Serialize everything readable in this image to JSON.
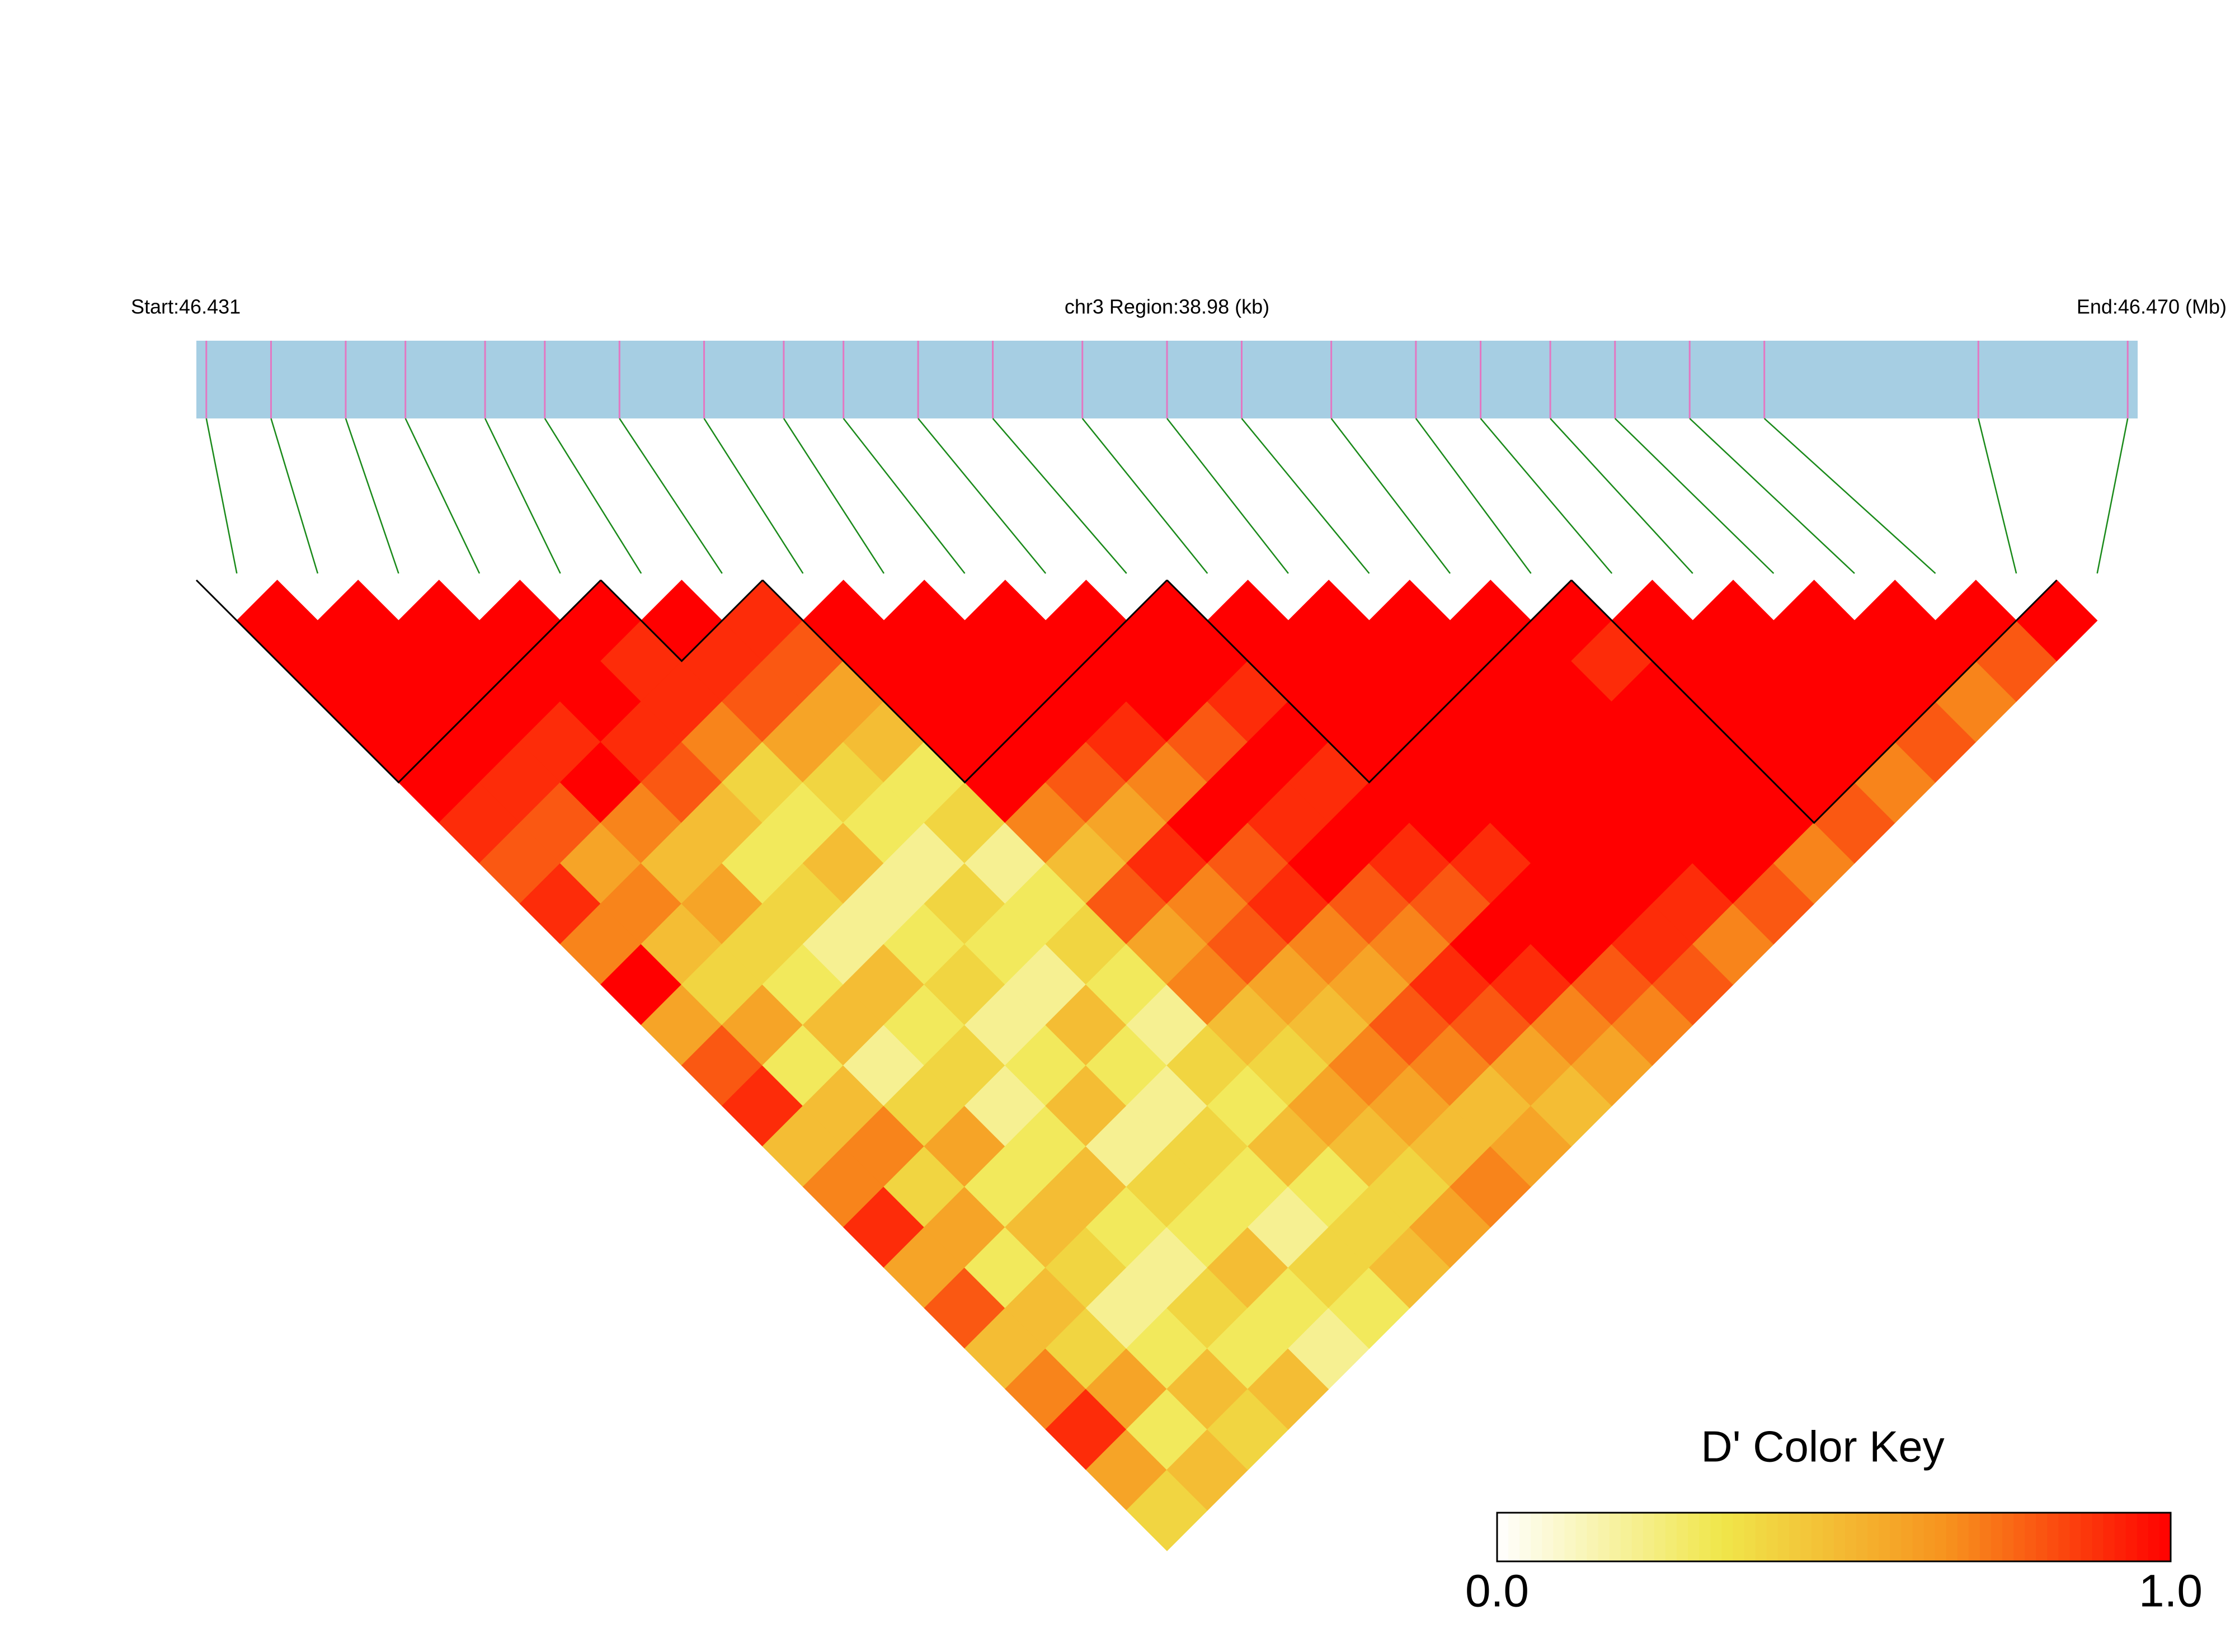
{
  "chart_data": {
    "type": "ld-heatmap",
    "start_label": "Start:46.431",
    "region_label": "chr3 Region:38.98 (kb)",
    "end_label": "End:46.470 (Mb)",
    "xlim": [
      46.431,
      46.47
    ],
    "positions": [
      46.4312,
      46.4325,
      46.434,
      46.4352,
      46.4368,
      46.438,
      46.4395,
      46.4412,
      46.4428,
      46.444,
      46.4455,
      46.447,
      46.4488,
      46.4505,
      46.452,
      46.4538,
      46.4555,
      46.4568,
      46.4582,
      46.4595,
      46.461,
      46.4625,
      46.4668,
      46.4698
    ],
    "ld": [
      [
        1,
        1,
        1,
        1,
        1,
        0.9,
        0.8,
        0.9,
        0.7,
        1,
        0.6,
        0.8,
        0.9,
        0.5,
        0.7,
        0.9,
        0.6,
        0.8,
        0.5,
        0.7,
        0.9,
        0.6,
        0.4
      ],
      [
        1,
        1,
        1,
        1,
        0.9,
        0.8,
        0.6,
        0.7,
        0.5,
        0.4,
        0.6,
        0.3,
        0.5,
        0.7,
        0.4,
        0.6,
        0.3,
        0.5,
        0.4,
        0.6,
        0.3,
        0.5
      ],
      [
        1,
        1,
        1,
        0.9,
        1,
        0.7,
        0.5,
        0.6,
        0.4,
        0.3,
        0.5,
        0.2,
        0.4,
        0.6,
        0.3,
        0.5,
        0.4,
        0.2,
        0.3,
        0.5,
        0.4
      ],
      [
        1,
        1,
        1,
        0.9,
        0.8,
        0.5,
        0.3,
        0.4,
        0.2,
        0.5,
        0.3,
        0.4,
        0.2,
        0.3,
        0.5,
        0.3,
        0.2,
        0.4,
        0.3,
        0.5
      ],
      [
        1,
        0.9,
        0.9,
        0.7,
        0.4,
        0.3,
        0.5,
        0.2,
        0.3,
        0.4,
        0.2,
        0.3,
        0.5,
        0.2,
        0.4,
        0.3,
        0.5,
        0.3,
        0.2
      ],
      [
        1,
        0.9,
        0.8,
        0.6,
        0.4,
        0.3,
        0.2,
        0.4,
        0.3,
        0.2,
        0.5,
        0.3,
        0.2,
        0.4,
        0.3,
        0.2,
        0.4,
        0.3
      ],
      [
        0.9,
        0.8,
        0.6,
        0.5,
        0.3,
        0.4,
        0.2,
        0.3,
        0.4,
        0.3,
        0.2,
        0.4,
        0.3,
        0.5,
        0.3,
        0.4,
        0.5
      ],
      [
        1,
        1,
        1,
        1,
        1,
        0.7,
        0.5,
        0.8,
        0.6,
        0.7,
        0.5,
        0.4,
        0.6,
        0.5,
        0.4,
        0.6
      ],
      [
        1,
        1,
        1,
        1,
        0.8,
        0.6,
        0.9,
        0.7,
        0.8,
        0.6,
        0.5,
        0.7,
        0.6,
        0.5,
        0.7
      ],
      [
        1,
        1,
        1,
        0.9,
        0.7,
        1,
        0.8,
        0.9,
        0.7,
        0.6,
        0.8,
        0.7,
        0.5,
        0.6
      ],
      [
        1,
        1,
        1,
        0.8,
        1,
        0.9,
        1,
        0.8,
        0.7,
        0.9,
        0.8,
        0.6,
        0.5
      ],
      [
        1,
        1,
        0.9,
        1,
        0.9,
        1,
        0.9,
        0.8,
        1,
        0.9,
        0.7,
        0.6
      ],
      [
        1,
        1,
        1,
        1,
        1,
        1,
        0.9,
        1,
        1,
        0.8,
        0.7
      ],
      [
        1,
        1,
        1,
        1,
        1,
        1,
        1,
        1,
        0.9,
        0.8
      ],
      [
        1,
        1,
        1,
        1,
        1,
        1,
        1,
        0.9,
        0.7
      ],
      [
        1,
        1,
        1,
        1,
        1,
        1,
        1,
        0.8
      ],
      [
        1,
        0.9,
        1,
        1,
        1,
        1,
        0.7
      ],
      [
        1,
        1,
        1,
        1,
        1,
        0.8
      ],
      [
        1,
        1,
        1,
        1,
        0.7
      ],
      [
        1,
        1,
        1,
        0.8
      ],
      [
        1,
        1,
        0.7
      ],
      [
        1,
        0.8
      ],
      [
        1
      ]
    ],
    "blocks": [
      [
        0,
        4
      ],
      [
        5,
        6
      ],
      [
        7,
        11
      ],
      [
        12,
        16
      ],
      [
        17,
        22
      ]
    ],
    "bar_color": "#a6cee3",
    "snp_line_color": "#e377c2",
    "connector_color": "#1a8a1a",
    "colors": [
      "#ffffff",
      "#f0e64a",
      "#f7931e",
      "#ff0000"
    ],
    "colorkey": {
      "title": "D' Color Key",
      "lim": [
        0,
        1
      ],
      "ticks": [
        {
          "value": 0,
          "label": "0.0"
        },
        {
          "value": 1,
          "label": "1.0"
        }
      ]
    }
  }
}
